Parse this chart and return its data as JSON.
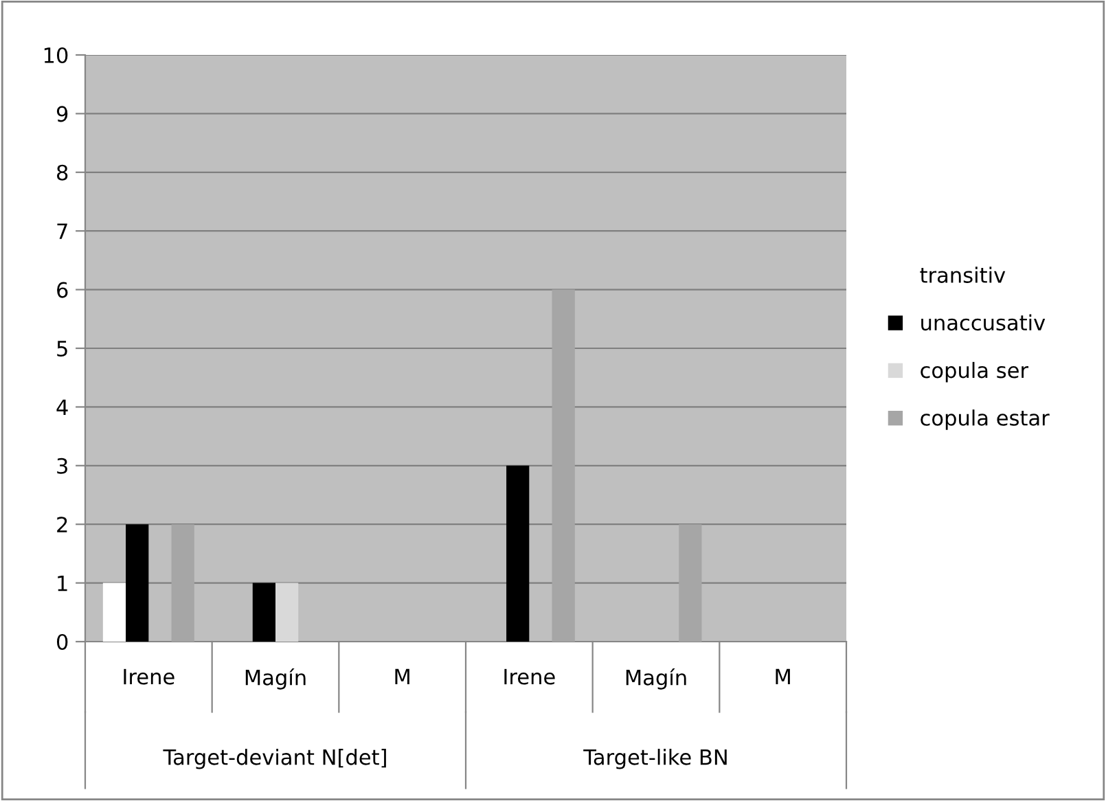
{
  "chart_data": {
    "type": "bar",
    "categories": [
      "Irene",
      "Magín",
      "M",
      "Irene",
      "Magín",
      "M"
    ],
    "series": [
      {
        "name": "transitiv",
        "color": "#ffffff",
        "values": [
          1,
          0,
          0,
          0,
          0,
          0
        ]
      },
      {
        "name": "unaccusativ",
        "color": "#000000",
        "values": [
          2,
          1,
          0,
          3,
          0,
          0
        ]
      },
      {
        "name": "copula ser",
        "color": "#d9d9d9",
        "values": [
          0,
          1,
          0,
          0,
          0,
          0
        ]
      },
      {
        "name": "copula estar",
        "color": "#a6a6a6",
        "values": [
          2,
          0,
          0,
          6,
          2,
          0
        ]
      }
    ],
    "annotations": [
      "Target-deviant N[det]",
      "Target-like BN"
    ],
    "ylim": [
      0,
      10
    ],
    "yticks": [
      0,
      1,
      2,
      3,
      4,
      5,
      6,
      7,
      8,
      9,
      10
    ],
    "grid": "y",
    "legend": "right"
  }
}
